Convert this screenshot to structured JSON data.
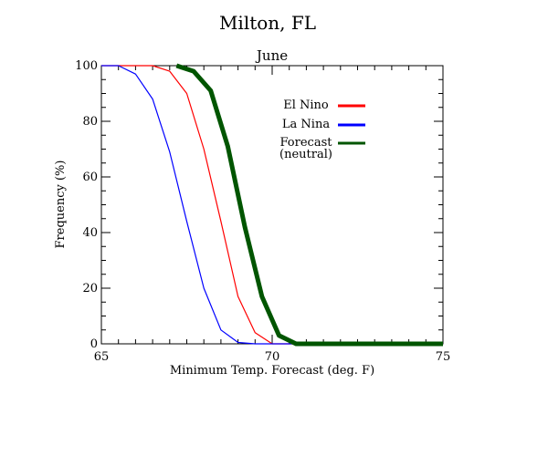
{
  "chart_data": {
    "type": "line",
    "title": "Milton, FL",
    "subtitle": "June",
    "xlabel": "Minimum Temp. Forecast (deg. F)",
    "ylabel": "Frequency (%)",
    "xlim": [
      65,
      75
    ],
    "ylim": [
      0,
      100
    ],
    "x_ticks": [
      "65",
      "70",
      "75"
    ],
    "y_ticks": [
      "0",
      "20",
      "40",
      "60",
      "80",
      "100"
    ],
    "grid": false,
    "legend_placement": "top-center",
    "series": [
      {
        "name": "El Nino",
        "color": "#ff0000",
        "x": [
          65,
          66,
          66.5,
          67,
          67.5,
          68,
          68.5,
          69,
          69.5,
          70,
          70.5,
          71,
          75
        ],
        "y": [
          100,
          100,
          100,
          98,
          90,
          70,
          44,
          17,
          4,
          0,
          0,
          0,
          0
        ]
      },
      {
        "name": "La Nina",
        "color": "#0000ff",
        "x": [
          65,
          65.5,
          66,
          66.5,
          67,
          67.5,
          68,
          68.5,
          69,
          69.5,
          70,
          75
        ],
        "y": [
          100,
          100,
          97,
          88,
          69,
          44,
          20,
          5,
          0.5,
          0,
          0,
          0
        ]
      },
      {
        "name": "Forecast\n(neutral)",
        "color": "#005500",
        "x": [
          67.2,
          67.7,
          68.2,
          68.7,
          69.2,
          69.7,
          70.2,
          70.7,
          71,
          72,
          75
        ],
        "y": [
          100,
          98,
          91,
          71,
          42,
          17,
          3,
          0,
          0,
          0,
          0
        ]
      }
    ]
  }
}
